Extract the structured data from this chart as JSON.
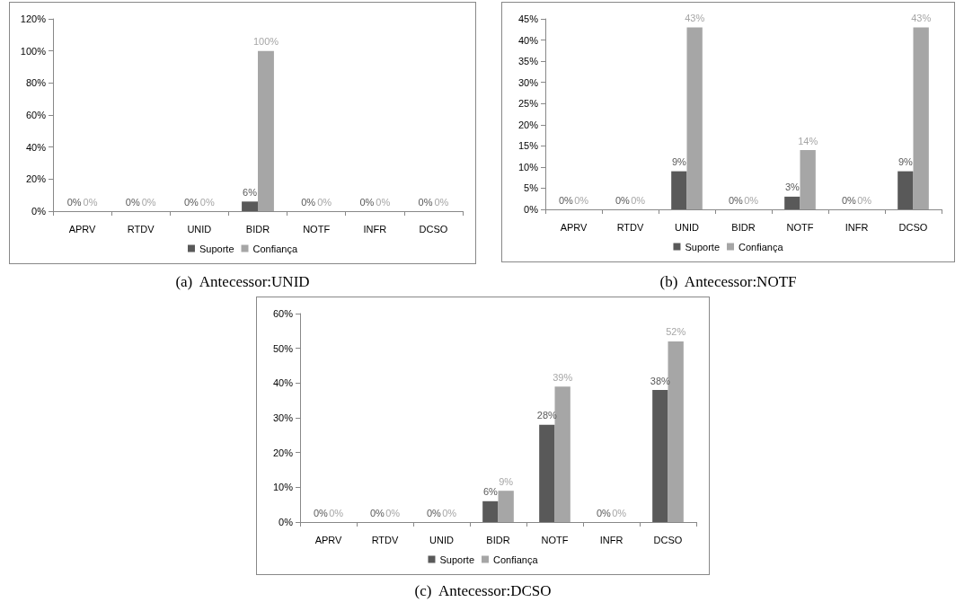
{
  "chart_data": [
    {
      "type": "bar",
      "title": "(a)  Antecessor:UNID",
      "categories": [
        "APRV",
        "RTDV",
        "UNID",
        "BIDR",
        "NOTF",
        "INFR",
        "DCSO"
      ],
      "series": [
        {
          "name": "Suporte",
          "color": "#595959",
          "values": [
            0,
            0,
            0,
            6,
            0,
            0,
            0
          ],
          "value_labels": [
            "0%",
            "0%",
            "0%",
            "6%",
            "0%",
            "0%",
            "0%"
          ]
        },
        {
          "name": "Confiança",
          "color": "#a6a6a6",
          "values": [
            0,
            0,
            0,
            100,
            0,
            0,
            0
          ],
          "value_labels": [
            "0%",
            "0%",
            "0%",
            "100%",
            "0%",
            "0%",
            "0%"
          ]
        }
      ],
      "ylim": [
        0,
        120
      ],
      "yticks": [
        {
          "value": 0,
          "label": "0%"
        },
        {
          "value": 20,
          "label": "20%"
        },
        {
          "value": 40,
          "label": "40%"
        },
        {
          "value": 60,
          "label": "60%"
        },
        {
          "value": 80,
          "label": "80%"
        },
        {
          "value": 100,
          "label": "100%"
        },
        {
          "value": 120,
          "label": "120%"
        }
      ],
      "legend": "bottom",
      "grid": false
    },
    {
      "type": "bar",
      "title": "(b)  Antecessor:NOTF",
      "categories": [
        "APRV",
        "RTDV",
        "UNID",
        "BIDR",
        "NOTF",
        "INFR",
        "DCSO"
      ],
      "series": [
        {
          "name": "Suporte",
          "color": "#595959",
          "values": [
            0,
            0,
            9,
            0,
            3,
            0,
            9
          ],
          "value_labels": [
            "0%",
            "0%",
            "9%",
            "0%",
            "3%",
            "0%",
            "9%"
          ]
        },
        {
          "name": "Confiança",
          "color": "#a6a6a6",
          "values": [
            0,
            0,
            43,
            0,
            14,
            0,
            43
          ],
          "value_labels": [
            "0%",
            "0%",
            "43%",
            "0%",
            "14%",
            "0%",
            "43%"
          ]
        }
      ],
      "ylim": [
        0,
        45
      ],
      "yticks": [
        {
          "value": 0,
          "label": "0%"
        },
        {
          "value": 5,
          "label": "5%"
        },
        {
          "value": 10,
          "label": "10%"
        },
        {
          "value": 15,
          "label": "15%"
        },
        {
          "value": 20,
          "label": "20%"
        },
        {
          "value": 25,
          "label": "25%"
        },
        {
          "value": 30,
          "label": "30%"
        },
        {
          "value": 35,
          "label": "35%"
        },
        {
          "value": 40,
          "label": "40%"
        },
        {
          "value": 45,
          "label": "45%"
        }
      ],
      "legend": "bottom",
      "grid": false
    },
    {
      "type": "bar",
      "title": "(c)  Antecessor:DCSO",
      "categories": [
        "APRV",
        "RTDV",
        "UNID",
        "BIDR",
        "NOTF",
        "INFR",
        "DCSO"
      ],
      "series": [
        {
          "name": "Suporte",
          "color": "#595959",
          "values": [
            0,
            0,
            0,
            6,
            28,
            0,
            38
          ],
          "value_labels": [
            "0%",
            "0%",
            "0%",
            "6%",
            "28%",
            "0%",
            "38%"
          ]
        },
        {
          "name": "Confiança",
          "color": "#a6a6a6",
          "values": [
            0,
            0,
            0,
            9,
            39,
            0,
            52
          ],
          "value_labels": [
            "0%",
            "0%",
            "0%",
            "9%",
            "39%",
            "0%",
            "52%"
          ]
        }
      ],
      "ylim": [
        0,
        60
      ],
      "yticks": [
        {
          "value": 0,
          "label": "0%"
        },
        {
          "value": 10,
          "label": "10%"
        },
        {
          "value": 20,
          "label": "20%"
        },
        {
          "value": 30,
          "label": "30%"
        },
        {
          "value": 40,
          "label": "40%"
        },
        {
          "value": 50,
          "label": "50%"
        },
        {
          "value": 60,
          "label": "60%"
        }
      ],
      "legend": "bottom",
      "grid": false
    }
  ]
}
